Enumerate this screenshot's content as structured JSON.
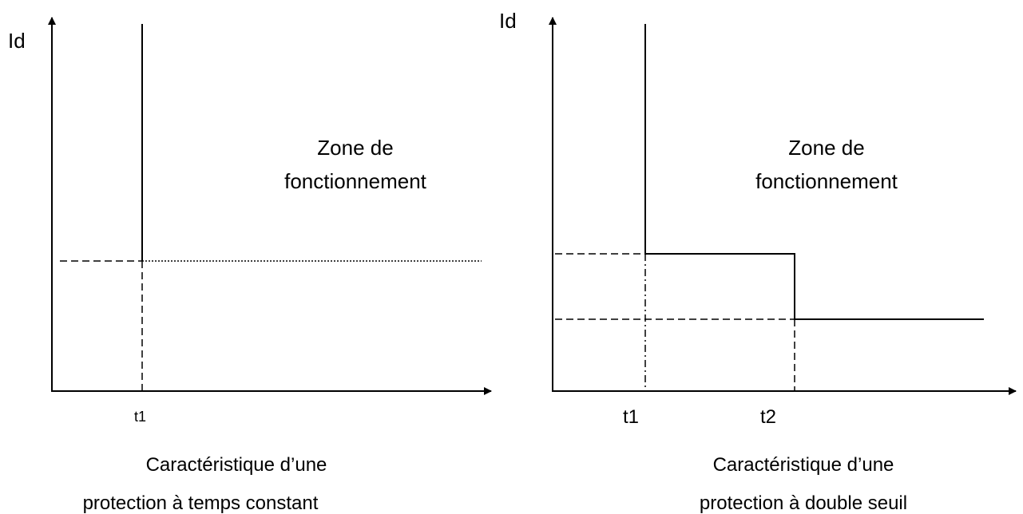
{
  "diagrams": [
    {
      "y_label": "Id",
      "x_ticks": [
        "t1"
      ],
      "zone_label": [
        "Zone de",
        "fonctionnement"
      ],
      "caption": [
        "Caractéristique d’une",
        "protection à temps constant"
      ]
    },
    {
      "y_label": "Id",
      "x_ticks": [
        "t1",
        "t2"
      ],
      "zone_label": [
        "Zone de",
        "fonctionnement"
      ],
      "caption": [
        "Caractéristique d’une",
        "protection à double seuil"
      ]
    }
  ]
}
